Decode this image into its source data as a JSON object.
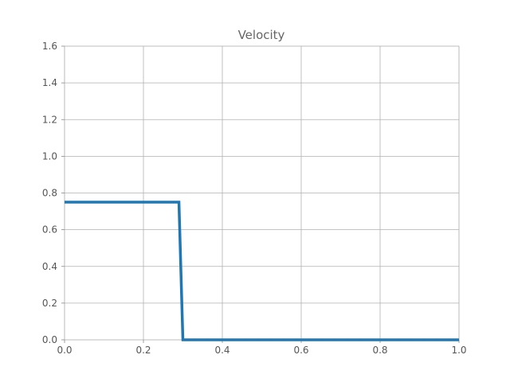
{
  "chart_data": {
    "type": "line",
    "title": "Velocity",
    "xlabel": "",
    "ylabel": "",
    "xlim": [
      0.0,
      1.0
    ],
    "ylim": [
      0.0,
      1.6
    ],
    "grid": true,
    "x_ticks": [
      "0.0",
      "0.2",
      "0.4",
      "0.6",
      "0.8",
      "1.0"
    ],
    "y_ticks": [
      "0.0",
      "0.2",
      "0.4",
      "0.6",
      "0.8",
      "1.0",
      "1.2",
      "1.4",
      "1.6"
    ],
    "series": [
      {
        "color": "#1f77b4",
        "x": [
          0.0,
          0.29,
          0.3,
          1.0
        ],
        "y": [
          0.75,
          0.75,
          0.0,
          0.0
        ]
      }
    ]
  }
}
